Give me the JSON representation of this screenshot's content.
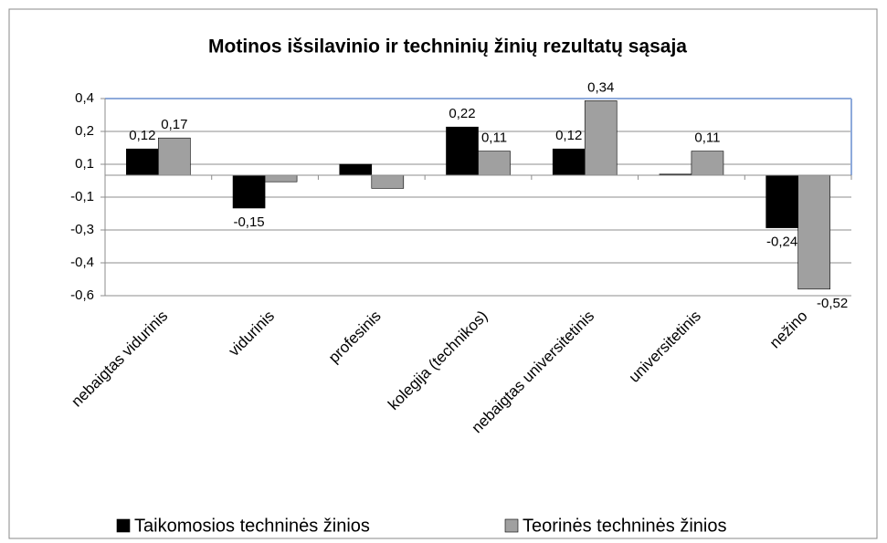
{
  "chart_data": {
    "type": "bar",
    "title": "Motinos išsilavinio ir techninių žinių rezultatų sąsaja",
    "categories": [
      "nebaigtas vidurinis",
      "vidurinis",
      "profesinis",
      "kolegija (technikos)",
      "nebaigtas universitetinis",
      "universitetinis",
      "nežino"
    ],
    "series": [
      {
        "name": "Taikomosios techninės žinios",
        "color": "#000000",
        "values": [
          0.12,
          -0.15,
          0.05,
          0.22,
          0.12,
          0.005,
          -0.24
        ],
        "value_labels": [
          "0,12",
          "-0,15",
          null,
          "0,22",
          "0,12",
          null,
          "-0,24"
        ]
      },
      {
        "name": "Teorinės techninės žinios",
        "color": "#a0a0a0",
        "values": [
          0.17,
          -0.03,
          -0.06,
          0.11,
          0.34,
          0.11,
          -0.52
        ],
        "value_labels": [
          "0,17",
          null,
          null,
          "0,11",
          "0,34",
          "0,11",
          "-0,52"
        ]
      }
    ],
    "ylim": [
      -0.55,
      0.35
    ],
    "yticks": [
      {
        "value": 0.35,
        "label": "0,4"
      },
      {
        "value": 0.2,
        "label": "0,2"
      },
      {
        "value": 0.05,
        "label": "0,1"
      },
      {
        "value": -0.1,
        "label": "-0,1"
      },
      {
        "value": -0.25,
        "label": "-0,3"
      },
      {
        "value": -0.4,
        "label": "-0,4"
      },
      {
        "value": -0.55,
        "label": "-0,6"
      }
    ],
    "grid": true,
    "legend": "bottom"
  }
}
